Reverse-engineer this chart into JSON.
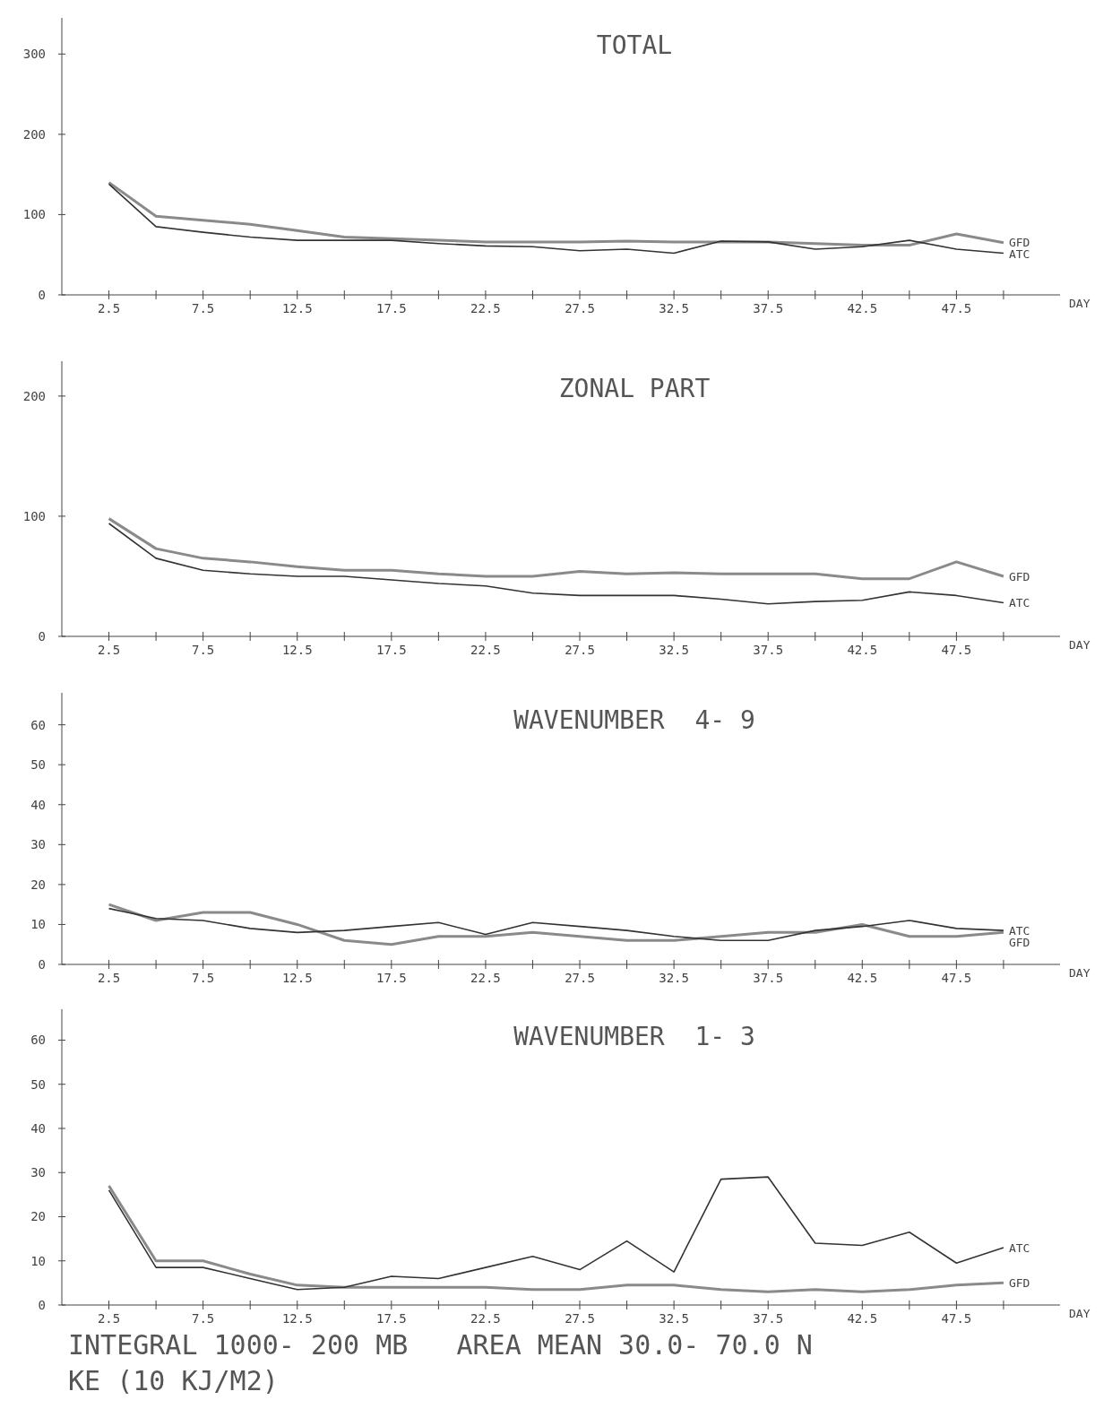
{
  "chart_data": [
    {
      "type": "line",
      "title": "TOTAL",
      "xlabel": "DAY",
      "x": [
        2.5,
        5,
        7.5,
        10,
        12.5,
        15,
        17.5,
        20,
        22.5,
        25,
        27.5,
        30,
        32.5,
        35,
        37.5,
        40,
        42.5,
        45,
        47.5,
        50
      ],
      "xlim": [
        0,
        53
      ],
      "xticks": [
        2.5,
        {
          "value": 5,
          "label": null
        },
        7.5,
        {
          "value": 10,
          "label": null
        },
        12.5,
        {
          "value": 15,
          "label": null
        },
        17.5,
        {
          "value": 20,
          "label": null
        },
        22.5,
        {
          "value": 25,
          "label": null
        },
        27.5,
        {
          "value": 30,
          "label": null
        },
        32.5,
        {
          "value": 35,
          "label": null
        },
        37.5,
        {
          "value": 40,
          "label": null
        },
        42.5,
        {
          "value": 45,
          "label": null
        },
        47.5,
        {
          "value": 50,
          "label": null
        }
      ],
      "ylim": [
        0,
        345
      ],
      "yticks": [
        0,
        100,
        200,
        300
      ],
      "series": [
        {
          "name": "GFD",
          "color": "#8a8a8a",
          "values": [
            140,
            98,
            93,
            88,
            80,
            72,
            70,
            68,
            66,
            66,
            66,
            67,
            66,
            66,
            66,
            64,
            62,
            62,
            76,
            65
          ]
        },
        {
          "name": "ATC",
          "color": "#333333",
          "values": [
            138,
            85,
            78,
            72,
            68,
            68,
            68,
            64,
            61,
            60,
            55,
            57,
            52,
            67,
            66,
            57,
            60,
            68,
            57,
            52
          ]
        }
      ]
    },
    {
      "type": "line",
      "title": "ZONAL PART",
      "xlabel": "DAY",
      "x": [
        2.5,
        5,
        7.5,
        10,
        12.5,
        15,
        17.5,
        20,
        22.5,
        25,
        27.5,
        30,
        32.5,
        35,
        37.5,
        40,
        42.5,
        45,
        47.5,
        50
      ],
      "xlim": [
        0,
        53
      ],
      "xticks": [
        2.5,
        {
          "value": 5,
          "label": null
        },
        7.5,
        {
          "value": 10,
          "label": null
        },
        12.5,
        {
          "value": 15,
          "label": null
        },
        17.5,
        {
          "value": 20,
          "label": null
        },
        22.5,
        {
          "value": 25,
          "label": null
        },
        27.5,
        {
          "value": 30,
          "label": null
        },
        32.5,
        {
          "value": 35,
          "label": null
        },
        37.5,
        {
          "value": 40,
          "label": null
        },
        42.5,
        {
          "value": 45,
          "label": null
        },
        47.5,
        {
          "value": 50,
          "label": null
        }
      ],
      "ylim": [
        0,
        229
      ],
      "yticks": [
        0,
        100,
        200
      ],
      "series": [
        {
          "name": "GFD",
          "color": "#8a8a8a",
          "values": [
            98,
            73,
            65,
            62,
            58,
            55,
            55,
            52,
            50,
            50,
            54,
            52,
            53,
            52,
            52,
            52,
            48,
            48,
            62,
            50
          ]
        },
        {
          "name": "ATC",
          "color": "#333333",
          "values": [
            94,
            65,
            55,
            52,
            50,
            50,
            47,
            44,
            42,
            36,
            34,
            34,
            34,
            31,
            27,
            29,
            30,
            37,
            34,
            28
          ]
        }
      ]
    },
    {
      "type": "line",
      "title": "WAVENUMBER  4- 9",
      "xlabel": "DAY",
      "x": [
        2.5,
        5,
        7.5,
        10,
        12.5,
        15,
        17.5,
        20,
        22.5,
        25,
        27.5,
        30,
        32.5,
        35,
        37.5,
        40,
        42.5,
        45,
        47.5,
        50
      ],
      "xlim": [
        0,
        53
      ],
      "xticks": [
        2.5,
        {
          "value": 5,
          "label": null
        },
        7.5,
        {
          "value": 10,
          "label": null
        },
        12.5,
        {
          "value": 15,
          "label": null
        },
        17.5,
        {
          "value": 20,
          "label": null
        },
        22.5,
        {
          "value": 25,
          "label": null
        },
        27.5,
        {
          "value": 30,
          "label": null
        },
        32.5,
        {
          "value": 35,
          "label": null
        },
        37.5,
        {
          "value": 40,
          "label": null
        },
        42.5,
        {
          "value": 45,
          "label": null
        },
        47.5,
        {
          "value": 50,
          "label": null
        }
      ],
      "ylim": [
        0,
        68
      ],
      "yticks": [
        0,
        10,
        20,
        30,
        40,
        50,
        60
      ],
      "series": [
        {
          "name": "GFD",
          "color": "#8a8a8a",
          "values": [
            15,
            11,
            13,
            13,
            10,
            6,
            5,
            7,
            7,
            8,
            7,
            6,
            6,
            7,
            8,
            8,
            10,
            7,
            7,
            8
          ]
        },
        {
          "name": "ATC",
          "color": "#333333",
          "values": [
            14,
            11.5,
            11,
            9,
            8,
            8.5,
            9.5,
            10.5,
            7.5,
            10.5,
            9.5,
            8.5,
            7,
            6,
            6,
            8.5,
            9.5,
            11,
            9,
            8.5
          ]
        }
      ]
    },
    {
      "type": "line",
      "title": "WAVENUMBER  1- 3",
      "xlabel": "DAY",
      "x": [
        2.5,
        5,
        7.5,
        10,
        12.5,
        15,
        17.5,
        20,
        22.5,
        25,
        27.5,
        30,
        32.5,
        35,
        37.5,
        40,
        42.5,
        45,
        47.5,
        50
      ],
      "xlim": [
        0,
        53
      ],
      "xticks": [
        2.5,
        {
          "value": 5,
          "label": null
        },
        7.5,
        {
          "value": 10,
          "label": null
        },
        12.5,
        {
          "value": 15,
          "label": null
        },
        17.5,
        {
          "value": 20,
          "label": null
        },
        22.5,
        {
          "value": 25,
          "label": null
        },
        27.5,
        {
          "value": 30,
          "label": null
        },
        32.5,
        {
          "value": 35,
          "label": null
        },
        37.5,
        {
          "value": 40,
          "label": null
        },
        42.5,
        {
          "value": 45,
          "label": null
        },
        47.5,
        {
          "value": 50,
          "label": null
        }
      ],
      "ylim": [
        0,
        67
      ],
      "yticks": [
        0,
        10,
        20,
        30,
        40,
        50,
        60
      ],
      "annotations": [
        "INTEGRAL 1000- 200 MB   AREA MEAN 30.0- 70.0 N",
        "KE (10 KJ/M2)"
      ],
      "series": [
        {
          "name": "GFD",
          "color": "#8a8a8a",
          "values": [
            27,
            10,
            10,
            7,
            4.5,
            4,
            4,
            4,
            4,
            3.5,
            3.5,
            4.5,
            4.5,
            3.5,
            3,
            3.5,
            3,
            3.5,
            4.5,
            5
          ]
        },
        {
          "name": "ATC",
          "color": "#333333",
          "values": [
            26,
            8.5,
            8.5,
            6,
            3.5,
            4,
            6.5,
            6,
            8.5,
            11,
            8,
            14.5,
            7.5,
            28.5,
            29,
            14,
            13.5,
            16.5,
            9.5,
            13
          ]
        }
      ]
    }
  ]
}
